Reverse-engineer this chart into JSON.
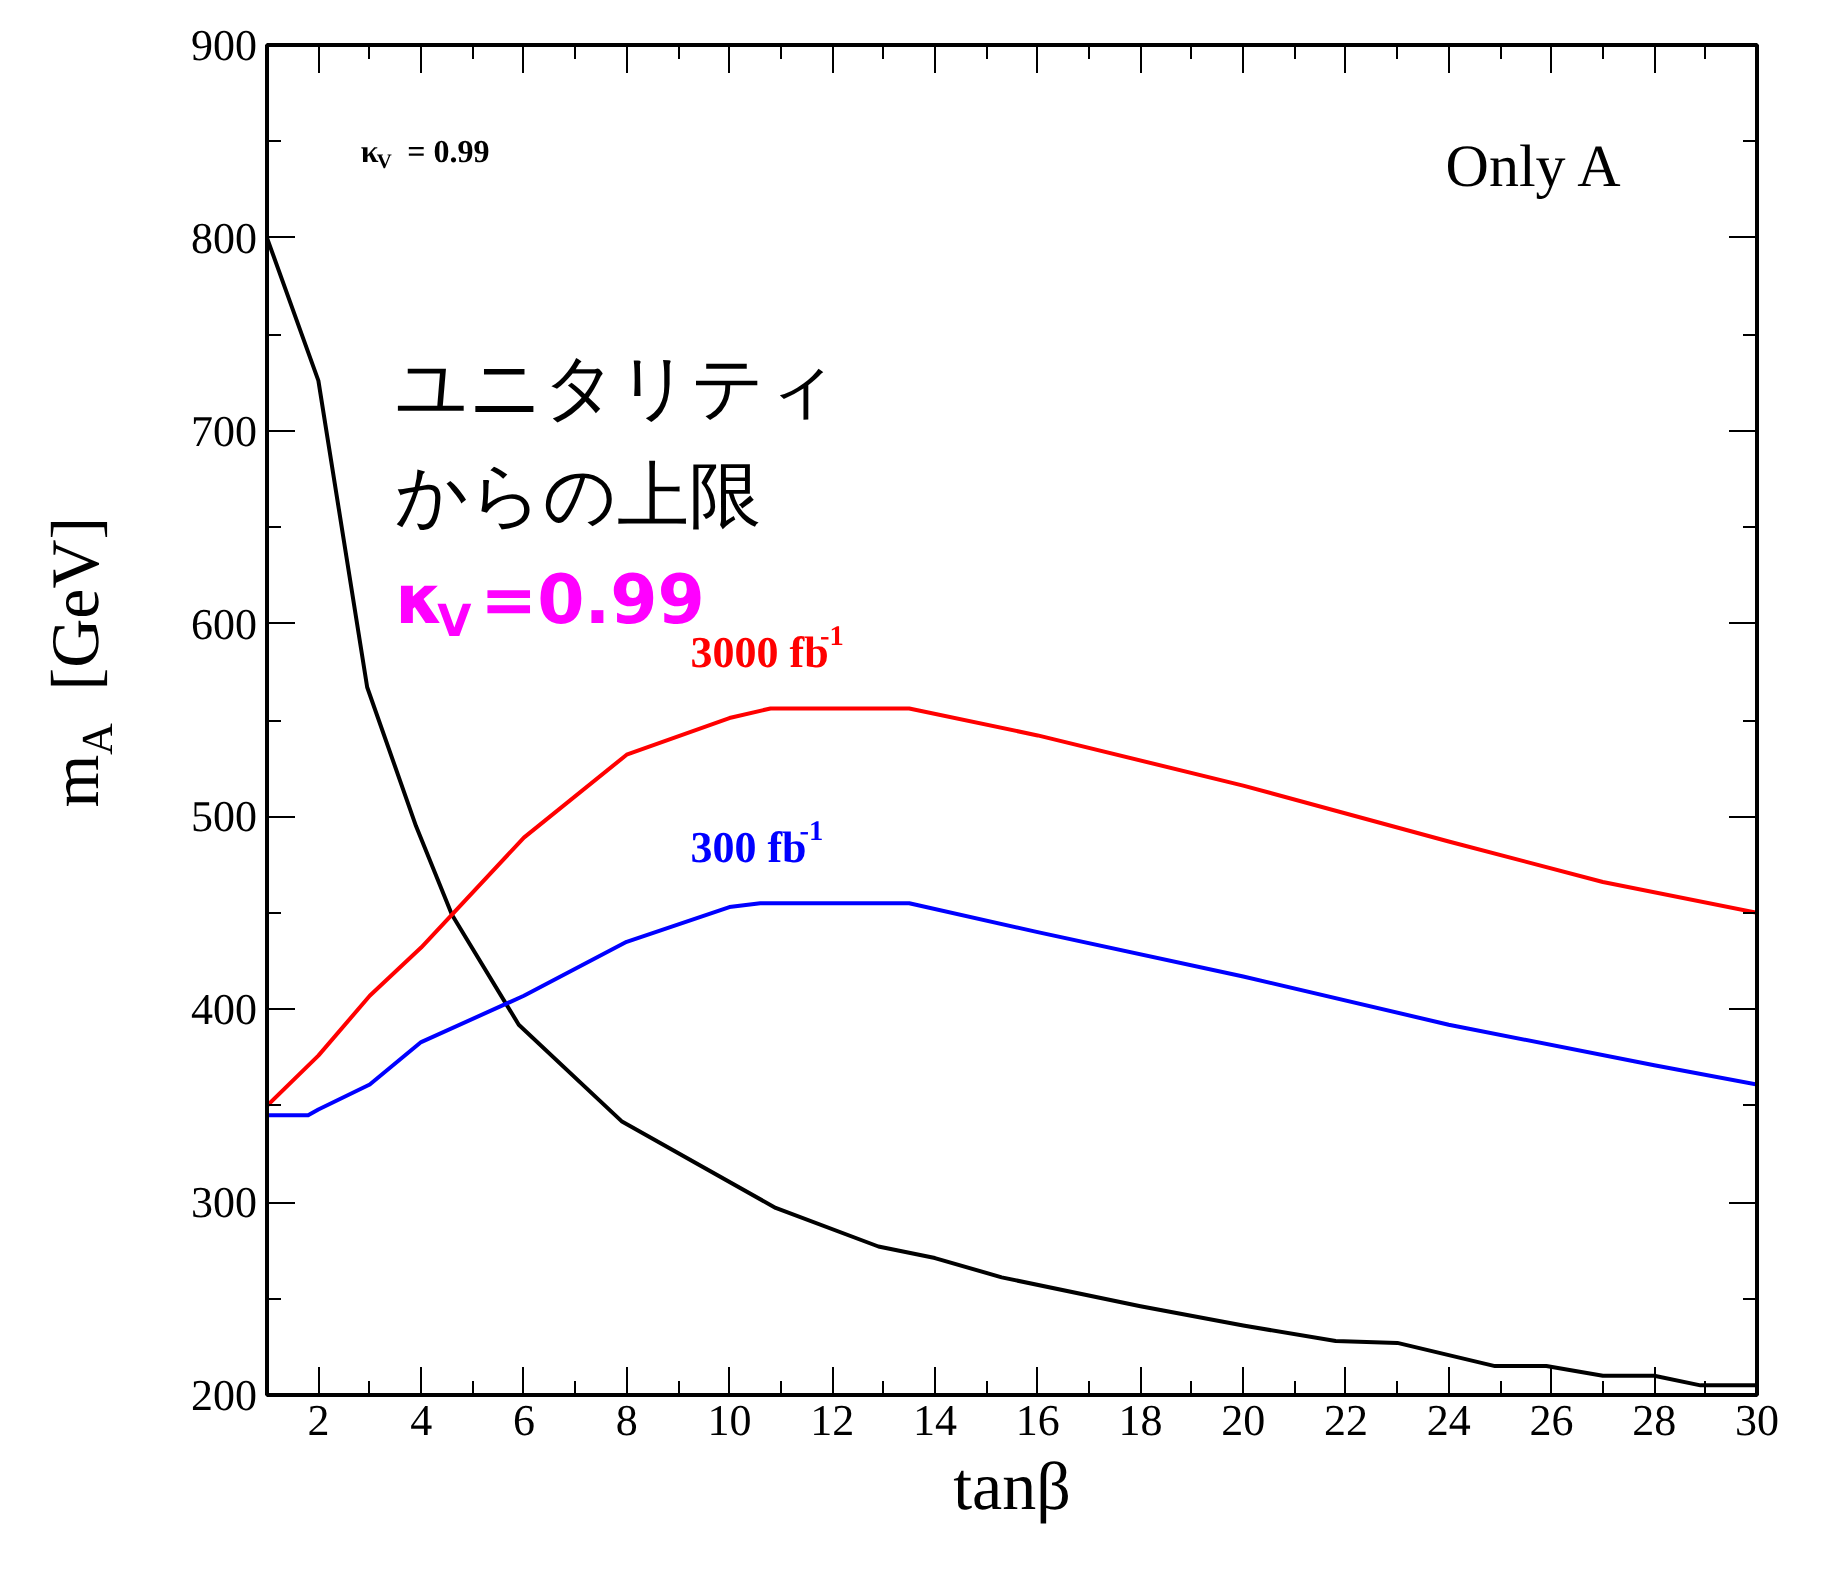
{
  "chart_data": {
    "type": "line",
    "xlabel": "tanβ",
    "ylabel": "m$_{A}$ [GeV]",
    "xlim": [
      1,
      30
    ],
    "ylim": [
      200,
      900
    ],
    "xticks": [
      2,
      4,
      6,
      8,
      10,
      12,
      14,
      16,
      18,
      20,
      22,
      24,
      26,
      28,
      30
    ],
    "yticks": [
      200,
      300,
      400,
      500,
      600,
      700,
      800,
      900
    ],
    "grid": false,
    "marker": "none",
    "line_style": "solid",
    "series": [
      {
        "color": "#000000",
        "x": [
          1,
          2,
          2.95,
          3.9,
          4.6,
          5.9,
          7.9,
          10.9,
          12.9,
          14,
          15.3,
          18,
          20,
          21.8,
          23,
          24.9,
          25.9,
          27,
          28,
          28.9,
          30
        ],
        "values": [
          800,
          726,
          567,
          495,
          449,
          392,
          342,
          297,
          277,
          271,
          261,
          246,
          236,
          228,
          227,
          215,
          215,
          210,
          210,
          205,
          205
        ]
      },
      {
        "name": "3000 fb$^{-1}$",
        "color": "#ff0000",
        "x": [
          1,
          2,
          3,
          4,
          6,
          8,
          10,
          10.8,
          13.5,
          16,
          20,
          24,
          27,
          30
        ],
        "values": [
          350,
          376,
          407,
          432,
          489,
          532,
          551,
          556,
          556,
          542,
          516,
          487,
          466,
          450
        ]
      },
      {
        "name": "300 fb$^{-1}$",
        "color": "#0000ff",
        "x": [
          1,
          1.8,
          2,
          3,
          4,
          6,
          8,
          10,
          10.6,
          13.5,
          16,
          20,
          24,
          28,
          30
        ],
        "values": [
          345,
          345,
          348,
          361,
          383,
          407,
          435,
          453,
          455,
          455,
          440,
          417,
          392,
          371,
          361
        ]
      }
    ],
    "annotations": [
      "κ$_{V}$ = 0.99",
      "Only A",
      "ユニタリティ",
      "からの上限",
      "κ$_{V}$=0.99"
    ]
  }
}
